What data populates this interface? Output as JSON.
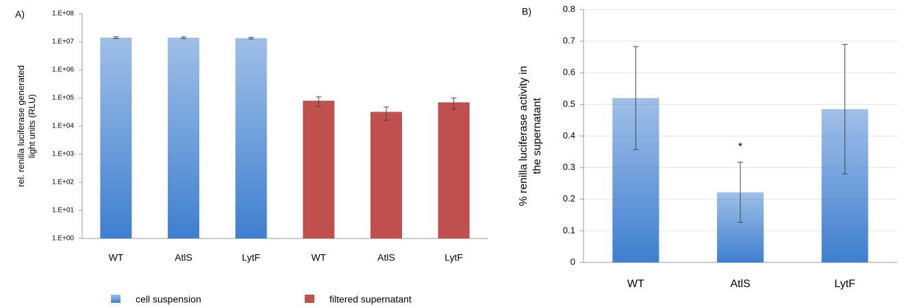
{
  "chart_data": [
    {
      "type": "bar",
      "panel_label": "A)",
      "ylabel": [
        "rel. renilla luciferase generated",
        "light units (RLU)"
      ],
      "categories": [
        "WT",
        "AtlS",
        "LytF",
        "WT",
        "AtlS",
        "LytF"
      ],
      "series": [
        {
          "name": "cell suspension",
          "color": "#3f7fd0",
          "values": [
            14000000,
            14000000,
            13500000,
            null,
            null,
            null
          ],
          "errors": [
            1000000,
            1000000,
            1000000,
            null,
            null,
            null
          ]
        },
        {
          "name": "filtered supernatant",
          "color": "#c0504d",
          "values": [
            null,
            null,
            null,
            80000,
            32000,
            70000
          ],
          "errors": [
            null,
            null,
            null,
            30000,
            16000,
            30000
          ]
        }
      ],
      "log_scale": true,
      "grid": false,
      "ylim": [
        1,
        100000000
      ],
      "yticks": [
        {
          "value": 1,
          "label": "1.E+00"
        },
        {
          "value": 10,
          "label": "1.E+01"
        },
        {
          "value": 100,
          "label": "1.E+02"
        },
        {
          "value": 1000,
          "label": "1.E+03"
        },
        {
          "value": 10000,
          "label": "1.E+04"
        },
        {
          "value": 100000,
          "label": "1.E+05"
        },
        {
          "value": 1000000,
          "label": "1.E+06"
        },
        {
          "value": 10000000,
          "label": "1.E+07"
        },
        {
          "value": 100000000,
          "label": "1.E+08"
        }
      ],
      "legend": "bottom"
    },
    {
      "type": "bar",
      "panel_label": "B)",
      "ylabel": [
        "% renilla luciferase activity in",
        "the supernatant"
      ],
      "categories": [
        "WT",
        "AtlS",
        "LytF"
      ],
      "series": [
        {
          "color": "#3f7fd0",
          "values": [
            0.52,
            0.222,
            0.485
          ],
          "errors": [
            0.163,
            0.095,
            0.205
          ]
        }
      ],
      "annotations": [
        {
          "text": "*"
        }
      ],
      "log_scale": false,
      "grid": true,
      "ylim": [
        0,
        0.8
      ],
      "yticks": [
        0,
        0.1,
        0.2,
        0.3,
        0.4,
        0.5,
        0.6,
        0.7,
        0.8
      ]
    }
  ]
}
